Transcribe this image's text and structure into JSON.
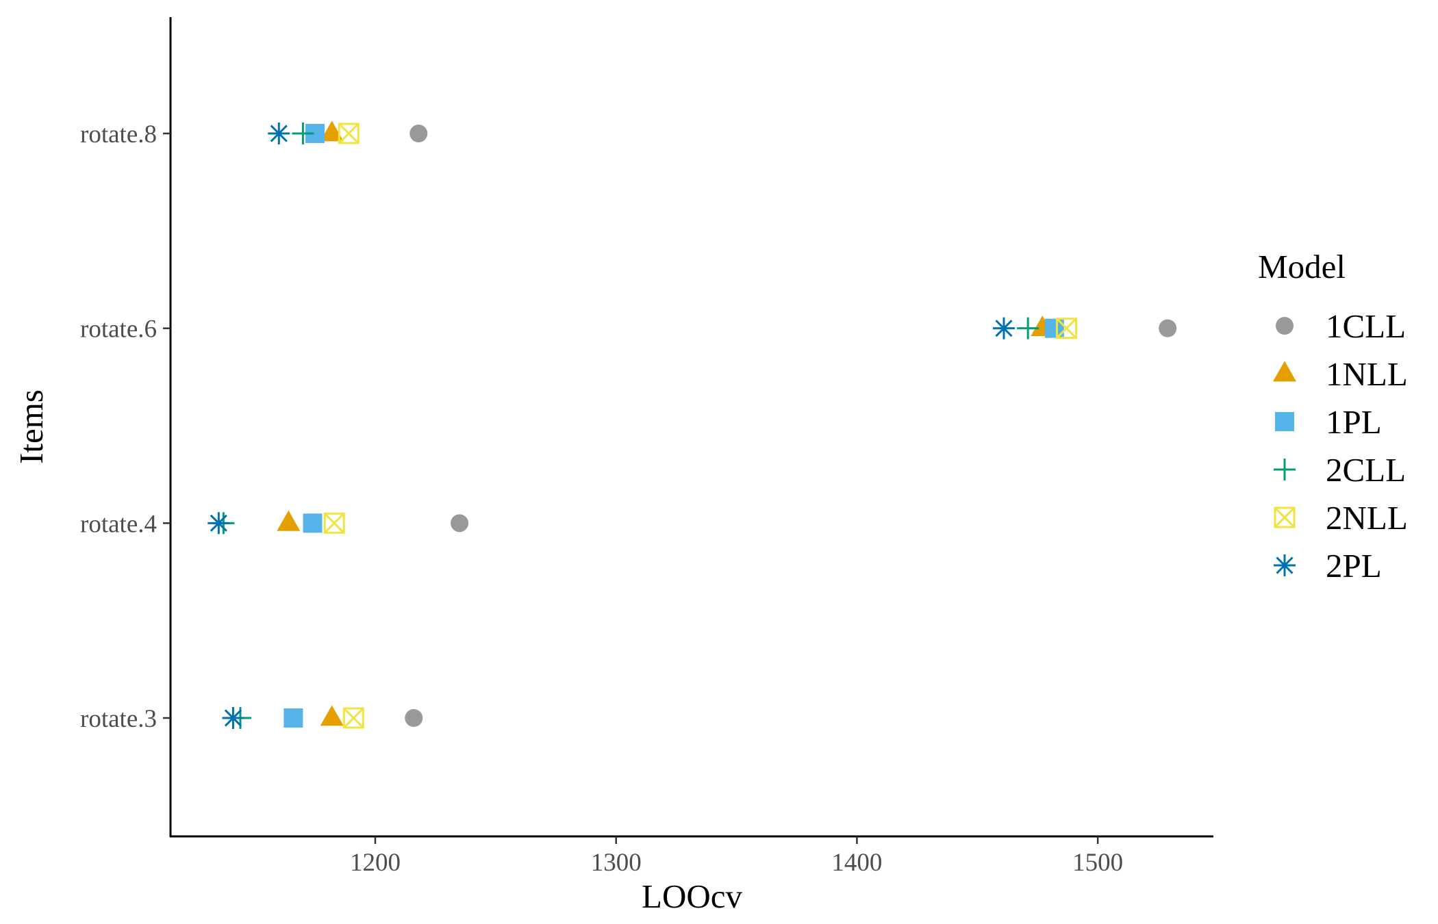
{
  "chart_data": {
    "type": "scatter",
    "xlabel": "LOOcv",
    "ylabel": "Items",
    "xlim": [
      1115,
      1548
    ],
    "x_ticks": [
      1200,
      1300,
      1400,
      1500
    ],
    "categories": [
      "rotate.3",
      "rotate.4",
      "rotate.6",
      "rotate.8"
    ],
    "grid": false,
    "legend": {
      "title": "Model",
      "placement": "right"
    },
    "series": [
      {
        "name": "1CLL",
        "shape": "circle",
        "color": "#999999",
        "values": [
          1216,
          1235,
          1529,
          1218
        ]
      },
      {
        "name": "1NLL",
        "shape": "triangle",
        "color": "#E69F00",
        "values": [
          1182,
          1164,
          1477,
          1182
        ]
      },
      {
        "name": "1PL",
        "shape": "square",
        "color": "#56B4E9",
        "values": [
          1166,
          1174,
          1482,
          1175
        ]
      },
      {
        "name": "2CLL",
        "shape": "plus",
        "color": "#009E73",
        "values": [
          1144,
          1137,
          1471,
          1170
        ]
      },
      {
        "name": "2NLL",
        "shape": "boxcross",
        "color": "#F0E442",
        "values": [
          1191,
          1183,
          1487,
          1189
        ]
      },
      {
        "name": "2PL",
        "shape": "asterisk",
        "color": "#0072B2",
        "values": [
          1141,
          1135,
          1461,
          1160
        ]
      }
    ]
  }
}
